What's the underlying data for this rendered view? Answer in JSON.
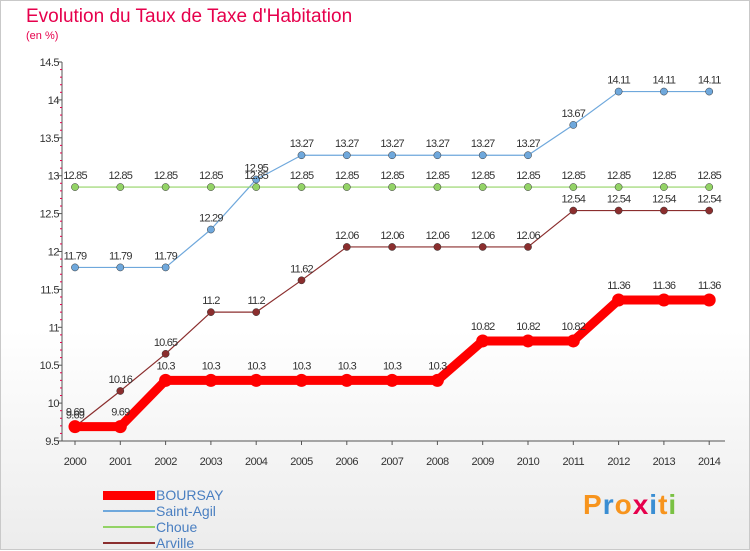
{
  "header": {
    "title": "Evolution du Taux de Taxe d'Habitation",
    "subtitle": "(en %)"
  },
  "logo": {
    "text": "Proxiti",
    "colors": [
      "#f7941d",
      "#3a8ed3",
      "#f7941d",
      "#e6004c",
      "#3a8ed3",
      "#f7941d",
      "#7ac143"
    ]
  },
  "chart_data": {
    "type": "line",
    "x": [
      "2000",
      "2001",
      "2002",
      "2003",
      "2004",
      "2005",
      "2006",
      "2007",
      "2008",
      "2009",
      "2010",
      "2011",
      "2012",
      "2013",
      "2014"
    ],
    "ylim": [
      9.5,
      14.5
    ],
    "yticks": [
      9.5,
      10,
      10.5,
      11,
      11.5,
      12,
      12.5,
      13,
      13.5,
      14,
      14.5
    ],
    "ytick_labels": [
      "9.5",
      "10",
      "10.5",
      "11",
      "11.5",
      "12",
      "12.5",
      "13",
      "13.5",
      "14",
      "14.5"
    ],
    "legend_position": "bottom-left",
    "grid": false,
    "series": [
      {
        "name": "BOURSAY",
        "color": "#ff0000",
        "values": [
          9.69,
          9.69,
          10.3,
          10.3,
          10.3,
          10.3,
          10.3,
          10.3,
          10.3,
          10.82,
          10.82,
          10.82,
          11.36,
          11.36,
          11.36
        ],
        "labels": [
          "9.69",
          "9.69",
          "10.3",
          "10.3",
          "10.3",
          "10.3",
          "10.3",
          "10.3",
          "10.3",
          "10.82",
          "10.82",
          "10.82",
          "11.36",
          "11.36",
          "11.36"
        ]
      },
      {
        "name": "Saint-Agil",
        "color": "#6fa8dc",
        "values": [
          11.79,
          11.79,
          11.79,
          12.29,
          12.95,
          13.27,
          13.27,
          13.27,
          13.27,
          13.27,
          13.27,
          13.67,
          14.11,
          14.11,
          14.11
        ],
        "labels": [
          "11.79",
          "11.79",
          "11.79",
          "12.29",
          "12.95",
          "13.27",
          "13.27",
          "13.27",
          "13.27",
          "13.27",
          "13.27",
          "13.67",
          "14.11",
          "14.11",
          "14.11"
        ]
      },
      {
        "name": "Choue",
        "color": "#93d366",
        "values": [
          12.85,
          12.85,
          12.85,
          12.85,
          12.85,
          12.85,
          12.85,
          12.85,
          12.85,
          12.85,
          12.85,
          12.85,
          12.85,
          12.85,
          12.85
        ],
        "labels": [
          "12.85",
          "12.85",
          "12.85",
          "12.85",
          "12.85",
          "12.85",
          "12.85",
          "12.85",
          "12.85",
          "12.85",
          "12.85",
          "12.85",
          "12.85",
          "12.85",
          "12.85"
        ]
      },
      {
        "name": "Arville",
        "color": "#8b2e2e",
        "values": [
          9.69,
          10.16,
          10.65,
          11.2,
          11.2,
          11.62,
          12.06,
          12.06,
          12.06,
          12.06,
          12.06,
          12.54,
          12.54,
          12.54,
          12.54
        ],
        "labels": [
          "9.69",
          "10.16",
          "10.65",
          "11.2",
          "11.2",
          "11.62",
          "12.06",
          "12.06",
          "12.06",
          "12.06",
          "12.06",
          "12.54",
          "12.54",
          "12.54",
          "12.54"
        ]
      }
    ]
  }
}
